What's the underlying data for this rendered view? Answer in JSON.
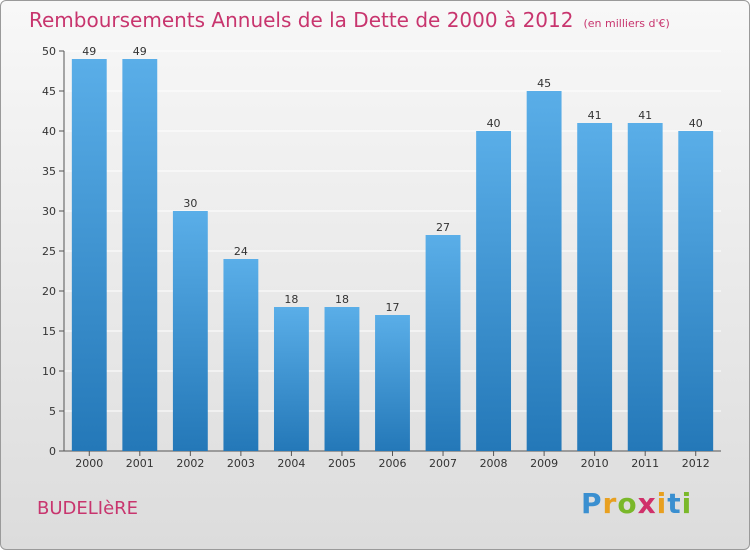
{
  "page": {
    "commune": "BUDELIèRE",
    "logo": {
      "letters": [
        {
          "char": "P",
          "color": "#3a8fd0"
        },
        {
          "char": "r",
          "color": "#e8a020"
        },
        {
          "char": "o",
          "color": "#7ab82a"
        },
        {
          "char": "x",
          "color": "#d0306a"
        },
        {
          "char": "i",
          "color": "#e8a020"
        },
        {
          "char": "t",
          "color": "#3a8fd0"
        },
        {
          "char": "i",
          "color": "#7ab82a"
        }
      ]
    }
  },
  "chart_data": {
    "type": "bar",
    "title": "Remboursements Annuels de la Dette de 2000 à 2012",
    "subtitle": "(en milliers d'€)",
    "categories": [
      "2000",
      "2001",
      "2002",
      "2003",
      "2004",
      "2005",
      "2006",
      "2007",
      "2008",
      "2009",
      "2010",
      "2011",
      "2012"
    ],
    "values": [
      49,
      49,
      30,
      24,
      18,
      18,
      17,
      27,
      40,
      45,
      41,
      41,
      40
    ],
    "ylim": [
      0,
      50
    ],
    "yticks": [
      0,
      5,
      10,
      15,
      20,
      25,
      30,
      35,
      40,
      45,
      50
    ],
    "grid": true,
    "colors": {
      "bar_top": "#5aaee8",
      "bar_bottom": "#2478b8",
      "grid": "#ffffff",
      "axis": "#555555"
    }
  }
}
